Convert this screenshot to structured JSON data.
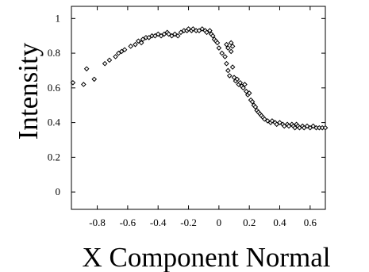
{
  "chart_data": {
    "type": "scatter",
    "title": "",
    "xlabel": "X Component Normal",
    "ylabel": "Intensity",
    "xlim": [
      -0.97,
      0.7
    ],
    "ylim": [
      -0.1,
      1.07
    ],
    "xticks": [
      "-0.8",
      "-0.6",
      "-0.4",
      "-0.2",
      "0",
      "0.2",
      "0.4",
      "0.6"
    ],
    "xtick_values": [
      -0.8,
      -0.6,
      -0.4,
      -0.2,
      0,
      0.2,
      0.4,
      0.6
    ],
    "yticks": [
      "0",
      "0.2",
      "0.4",
      "0.6",
      "0.8",
      "1"
    ],
    "ytick_values": [
      0,
      0.2,
      0.4,
      0.6,
      0.8,
      1
    ],
    "grid": false,
    "legend": "none",
    "series": [
      {
        "marker": "diamond",
        "color": "#000000",
        "points": [
          [
            -0.96,
            0.63
          ],
          [
            -0.89,
            0.62
          ],
          [
            -0.87,
            0.71
          ],
          [
            -0.82,
            0.65
          ],
          [
            -0.75,
            0.74
          ],
          [
            -0.72,
            0.76
          ],
          [
            -0.68,
            0.78
          ],
          [
            -0.66,
            0.8
          ],
          [
            -0.64,
            0.81
          ],
          [
            -0.62,
            0.82
          ],
          [
            -0.58,
            0.84
          ],
          [
            -0.55,
            0.85
          ],
          [
            -0.53,
            0.87
          ],
          [
            -0.51,
            0.86
          ],
          [
            -0.5,
            0.88
          ],
          [
            -0.48,
            0.89
          ],
          [
            -0.46,
            0.89
          ],
          [
            -0.44,
            0.9
          ],
          [
            -0.42,
            0.9
          ],
          [
            -0.4,
            0.91
          ],
          [
            -0.38,
            0.9
          ],
          [
            -0.36,
            0.91
          ],
          [
            -0.34,
            0.92
          ],
          [
            -0.33,
            0.91
          ],
          [
            -0.31,
            0.9
          ],
          [
            -0.29,
            0.91
          ],
          [
            -0.27,
            0.9
          ],
          [
            -0.25,
            0.92
          ],
          [
            -0.23,
            0.93
          ],
          [
            -0.21,
            0.93
          ],
          [
            -0.2,
            0.94
          ],
          [
            -0.18,
            0.93
          ],
          [
            -0.17,
            0.94
          ],
          [
            -0.15,
            0.93
          ],
          [
            -0.13,
            0.93
          ],
          [
            -0.11,
            0.94
          ],
          [
            -0.09,
            0.93
          ],
          [
            -0.08,
            0.92
          ],
          [
            -0.06,
            0.93
          ],
          [
            -0.05,
            0.91
          ],
          [
            -0.04,
            0.9
          ],
          [
            -0.03,
            0.88
          ],
          [
            -0.02,
            0.87
          ],
          [
            -0.01,
            0.86
          ],
          [
            0.0,
            0.83
          ],
          [
            0.02,
            0.8
          ],
          [
            0.04,
            0.78
          ],
          [
            0.05,
            0.74
          ],
          [
            0.06,
            0.7
          ],
          [
            0.07,
            0.67
          ],
          [
            0.05,
            0.85
          ],
          [
            0.06,
            0.83
          ],
          [
            0.08,
            0.86
          ],
          [
            0.09,
            0.84
          ],
          [
            0.08,
            0.81
          ],
          [
            0.09,
            0.72
          ],
          [
            0.1,
            0.66
          ],
          [
            0.11,
            0.64
          ],
          [
            0.12,
            0.65
          ],
          [
            0.13,
            0.62
          ],
          [
            0.14,
            0.63
          ],
          [
            0.15,
            0.61
          ],
          [
            0.16,
            0.6
          ],
          [
            0.17,
            0.62
          ],
          [
            0.18,
            0.58
          ],
          [
            0.19,
            0.56
          ],
          [
            0.2,
            0.57
          ],
          [
            0.21,
            0.53
          ],
          [
            0.22,
            0.52
          ],
          [
            0.23,
            0.5
          ],
          [
            0.24,
            0.49
          ],
          [
            0.25,
            0.47
          ],
          [
            0.26,
            0.46
          ],
          [
            0.27,
            0.45
          ],
          [
            0.28,
            0.44
          ],
          [
            0.29,
            0.43
          ],
          [
            0.3,
            0.42
          ],
          [
            0.32,
            0.41
          ],
          [
            0.34,
            0.4
          ],
          [
            0.35,
            0.41
          ],
          [
            0.37,
            0.4
          ],
          [
            0.38,
            0.39
          ],
          [
            0.4,
            0.4
          ],
          [
            0.42,
            0.39
          ],
          [
            0.43,
            0.38
          ],
          [
            0.45,
            0.39
          ],
          [
            0.46,
            0.38
          ],
          [
            0.48,
            0.39
          ],
          [
            0.49,
            0.38
          ],
          [
            0.5,
            0.37
          ],
          [
            0.51,
            0.39
          ],
          [
            0.52,
            0.38
          ],
          [
            0.53,
            0.37
          ],
          [
            0.55,
            0.38
          ],
          [
            0.56,
            0.37
          ],
          [
            0.58,
            0.38
          ],
          [
            0.6,
            0.37
          ],
          [
            0.62,
            0.38
          ],
          [
            0.64,
            0.37
          ],
          [
            0.66,
            0.37
          ],
          [
            0.68,
            0.37
          ],
          [
            0.7,
            0.37
          ]
        ]
      }
    ]
  }
}
